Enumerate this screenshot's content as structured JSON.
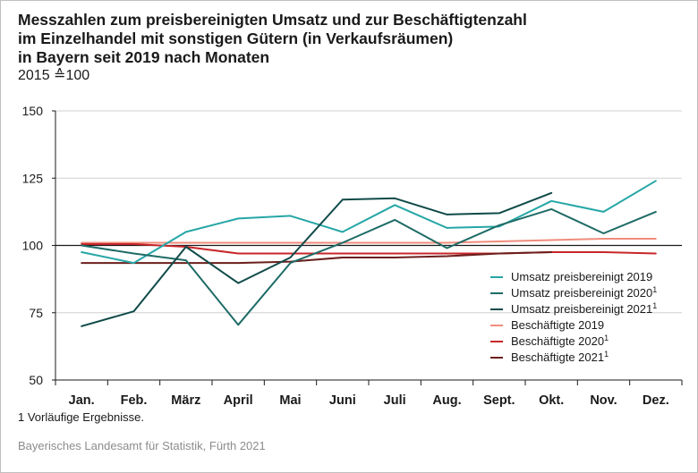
{
  "title_lines": [
    "Messzahlen zum preisbereinigten Umsatz und zur Beschäftigtenzahl",
    "im Einzelhandel mit sonstigen Gütern (in Verkaufsräumen)",
    "in Bayern seit 2019 nach Monaten"
  ],
  "subtitle": "2015 ≙100",
  "footnote": "1  Vorläufige Ergebnisse.",
  "source": "Bayerisches Landesamt für Statistik, Fürth 2021",
  "chart_data": {
    "type": "line",
    "categories": [
      "Jan.",
      "Feb.",
      "März",
      "April",
      "Mai",
      "Juni",
      "Juli",
      "Aug.",
      "Sept.",
      "Okt.",
      "Nov.",
      "Dez."
    ],
    "ylim": [
      50,
      150
    ],
    "yticks": [
      50,
      75,
      100,
      125,
      150
    ],
    "grid": "horizontal",
    "legend_position": "bottom-right",
    "series": [
      {
        "name": "Umsatz preisbereinigt 2019",
        "sup": "",
        "color": "#26a6a6",
        "width": 2,
        "values": [
          97.5,
          93.5,
          105,
          110,
          111,
          105,
          115,
          106.5,
          107,
          116.5,
          112.5,
          124
        ]
      },
      {
        "name": "Umsatz preisbereinigt 2020",
        "sup": "1",
        "color": "#1e6b66",
        "width": 2,
        "values": [
          100,
          97,
          94.5,
          70.5,
          93.5,
          101,
          109.5,
          99,
          107.5,
          113.5,
          104.5,
          112.5
        ]
      },
      {
        "name": "Umsatz preisbereinigt 2021",
        "sup": "1",
        "color": "#0f4a48",
        "width": 2,
        "values": [
          70,
          75.5,
          99.5,
          86,
          95.5,
          117,
          117.5,
          111.5,
          112,
          119.5,
          null,
          null
        ]
      },
      {
        "name": "Beschäftigte 2019",
        "sup": "",
        "color": "#f08c7c",
        "width": 2,
        "values": [
          101,
          101,
          101,
          101,
          101,
          101,
          101,
          101,
          101.5,
          102,
          102.5,
          102.5
        ]
      },
      {
        "name": "Beschäftigte 2020",
        "sup": "1",
        "color": "#c8262a",
        "width": 2,
        "values": [
          100.5,
          100.5,
          99.5,
          97,
          97,
          97,
          97,
          97,
          97,
          97.5,
          97.5,
          97
        ]
      },
      {
        "name": "Beschäftigte 2021",
        "sup": "1",
        "color": "#6b1f1c",
        "width": 2,
        "values": [
          93.5,
          93.5,
          93.5,
          93.5,
          94,
          95.5,
          95.5,
          96,
          97,
          97.5,
          null,
          null
        ]
      }
    ]
  }
}
